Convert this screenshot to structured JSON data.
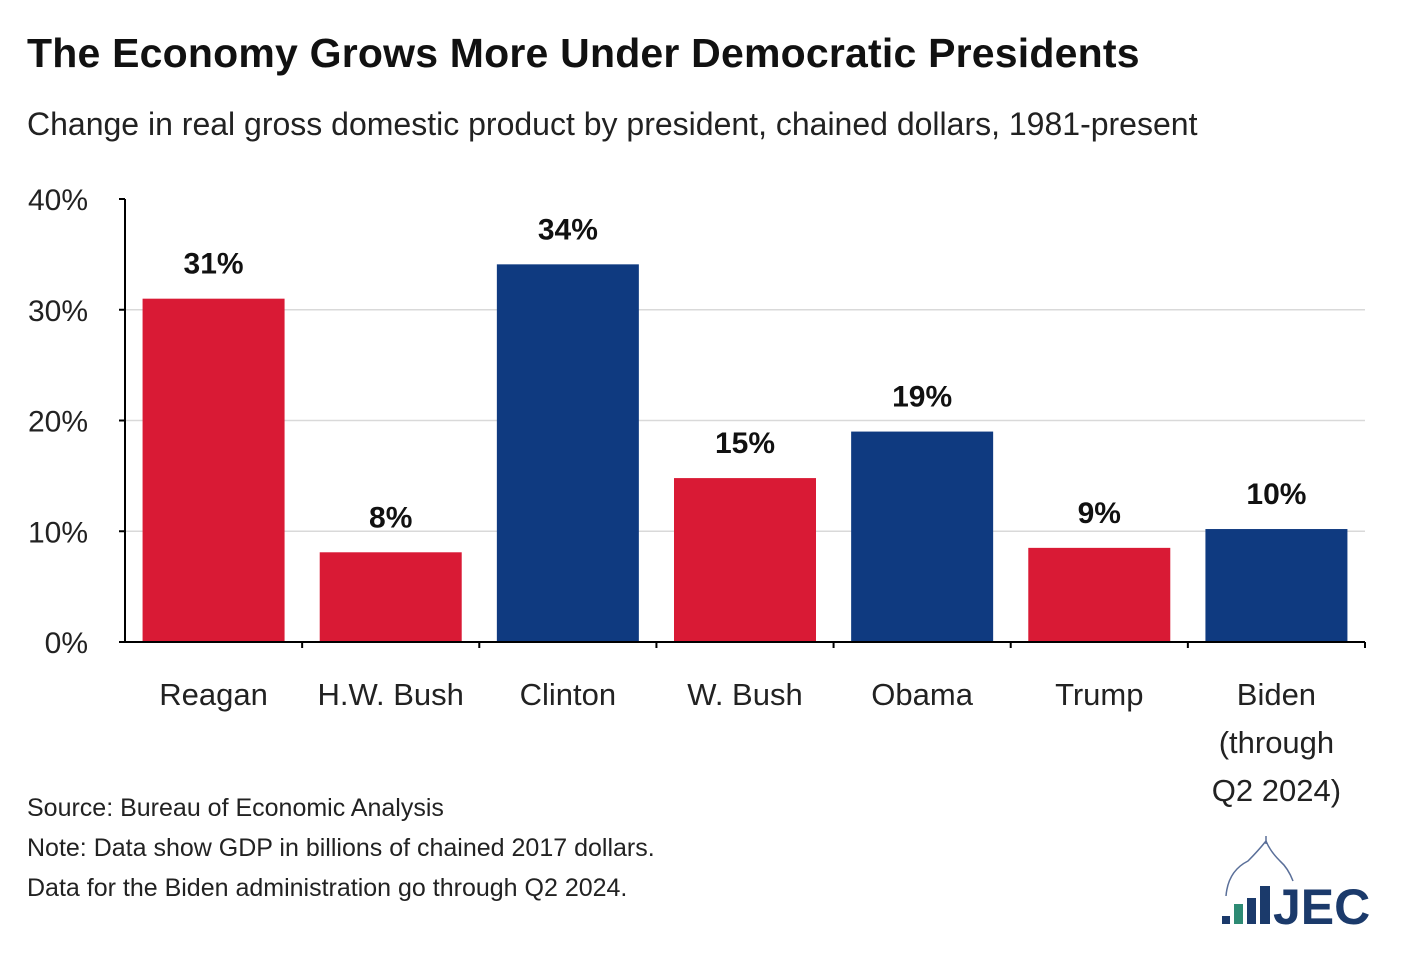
{
  "title": "The Economy Grows More Under Democratic Presidents",
  "subtitle": "Change in real gross domestic product by president, chained dollars, 1981-present",
  "footer": {
    "source": "Source: Bureau of Economic Analysis",
    "note1": "Note: Data show GDP in billions of chained 2017 dollars.",
    "note2": "Data for the Biden administration go through Q2 2024."
  },
  "logo": {
    "text": "JEC"
  },
  "colors": {
    "republican": "#D91A35",
    "democrat": "#0F3A80",
    "logo": "#1B3A6B",
    "logo_accent": "#2E8B74"
  },
  "chart_data": {
    "type": "bar",
    "categories": [
      [
        "Reagan"
      ],
      [
        "H.W. Bush"
      ],
      [
        "Clinton"
      ],
      [
        "W. Bush"
      ],
      [
        "Obama"
      ],
      [
        "Trump"
      ],
      [
        "Biden",
        "(through",
        "Q2 2024)"
      ]
    ],
    "values": [
      31,
      8.1,
      34.1,
      14.8,
      19,
      8.5,
      10.2
    ],
    "data_labels": [
      "31%",
      "8%",
      "34%",
      "15%",
      "19%",
      "9%",
      "10%"
    ],
    "party": [
      "republican",
      "republican",
      "democrat",
      "republican",
      "democrat",
      "republican",
      "democrat"
    ],
    "ylim": [
      0,
      40
    ],
    "yticks": [
      0,
      10,
      20,
      30,
      40
    ],
    "ytick_labels": [
      "0%",
      "10%",
      "20%",
      "30%",
      "40%"
    ],
    "grid": true,
    "legend": "none"
  }
}
